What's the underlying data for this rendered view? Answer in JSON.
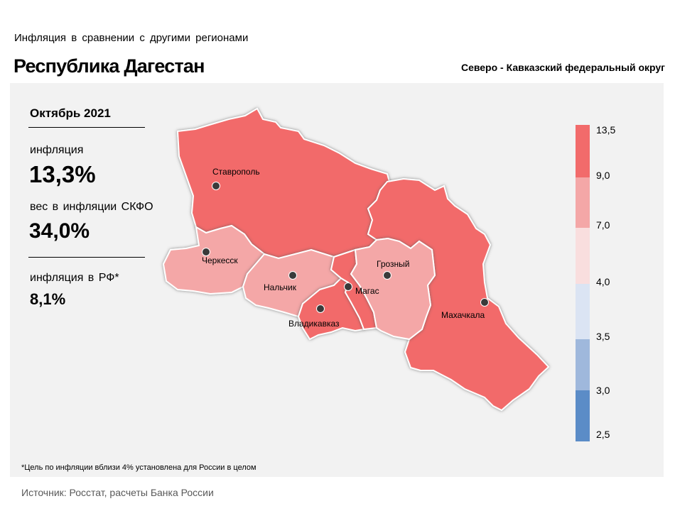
{
  "header": {
    "subtitle": "Инфляция  в сравнении  с другими  регионами",
    "title": "Республика Дагестан",
    "district": "Северо - Кавказский федеральный округ"
  },
  "stats": {
    "period": "Октябрь 2021",
    "inflation_label": "инфляция",
    "inflation_value": "13,3%",
    "weight_label": "вес в инфляции  СКФО",
    "weight_value": "34,0%",
    "rf_label": "инфляция  в РФ*",
    "rf_value": "8,1%"
  },
  "map": {
    "regions": [
      {
        "name": "Ставропольский край",
        "class": "9,0–13,5",
        "color": "#f26b6b"
      },
      {
        "name": "Дагестан",
        "class": "9,0–13,5",
        "color": "#f26b6b"
      },
      {
        "name": "Северная Осетия",
        "class": "9,0–13,5",
        "color": "#f26b6b"
      },
      {
        "name": "Ингушетия",
        "class": "9,0–13,5",
        "color": "#f26b6b"
      },
      {
        "name": "Карачаево-Черкесия",
        "class": "7,0–9,0",
        "color": "#f4a7a7"
      },
      {
        "name": "Кабардино-Балкария",
        "class": "7,0–9,0",
        "color": "#f4a7a7"
      },
      {
        "name": "Чечня",
        "class": "7,0–9,0",
        "color": "#f4a7a7"
      }
    ],
    "cities": {
      "stavropol": "Ставрополь",
      "cherkessk": "Черкесск",
      "nalchik": "Нальчик",
      "magas": "Магас",
      "grozny": "Грозный",
      "vladikavkaz": "Владикавказ",
      "makhachkala": "Махачкала"
    }
  },
  "legend": {
    "colors": [
      "#f26b6b",
      "#f4a7a7",
      "#f9dede",
      "#dbe4f3",
      "#9fb8dc",
      "#5b8cc7"
    ],
    "ticks": [
      "13,5",
      "9,0",
      "7,0",
      "4,0",
      "3,5",
      "3,0",
      "2,5"
    ]
  },
  "footnote": "*Цель по инфляции вблизи 4% установлена для России в целом",
  "source": "Источник: Росстат, расчеты Банка России"
}
